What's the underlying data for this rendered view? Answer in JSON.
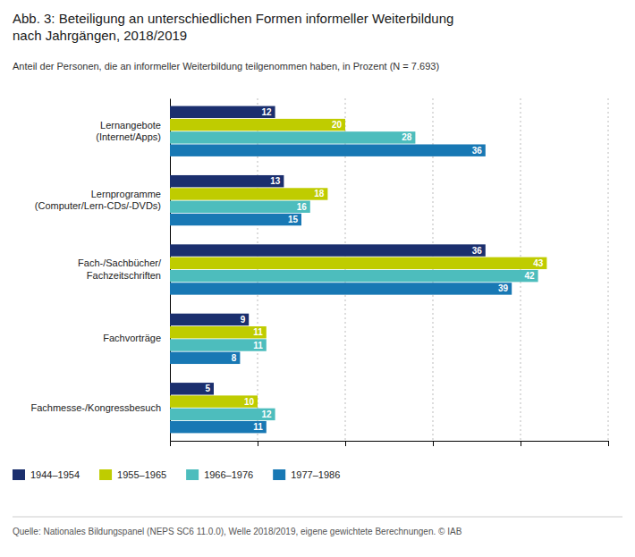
{
  "chart_data": {
    "type": "bar",
    "orientation": "horizontal",
    "title": "Abb. 3: Beteiligung an unterschiedlichen Formen informeller Weiterbildung\nnach Jahrgängen, 2018/2019",
    "subtitle": "Anteil der Personen, die an informeller Weiterbildung teilgenommen haben, in Prozent (N = 7.693)",
    "source": "Quelle: Nationales Bildungspanel (NEPS SC6 11.0.0), Welle 2018/2019, eigene gewichtete Berechnungen. © IAB",
    "categories": [
      "Lernangebote\n(Internet/Apps)",
      "Lernprogramme\n(Computer/Lern-CDs/-DVDs)",
      "Fach-/Sachbücher/\nFachzeitschriften",
      "Fachvorträge",
      "Fachmesse-/Kongressbesuch"
    ],
    "series": [
      {
        "name": "1944–1954",
        "color": "#1b2f6e",
        "values": [
          12,
          13,
          36,
          9,
          5
        ]
      },
      {
        "name": "1955–1965",
        "color": "#bfcc00",
        "values": [
          20,
          18,
          43,
          11,
          10
        ]
      },
      {
        "name": "1966–1976",
        "color": "#4dbdbd",
        "values": [
          28,
          16,
          42,
          11,
          12
        ]
      },
      {
        "name": "1977–1986",
        "color": "#1878b4",
        "values": [
          36,
          15,
          39,
          8,
          11
        ]
      }
    ],
    "xlim": [
      0,
      50
    ],
    "xticks": [
      10,
      20,
      30,
      40,
      50
    ],
    "grid": true,
    "legend": "bottom-left",
    "data_labels": true,
    "tick_labels": "y"
  }
}
